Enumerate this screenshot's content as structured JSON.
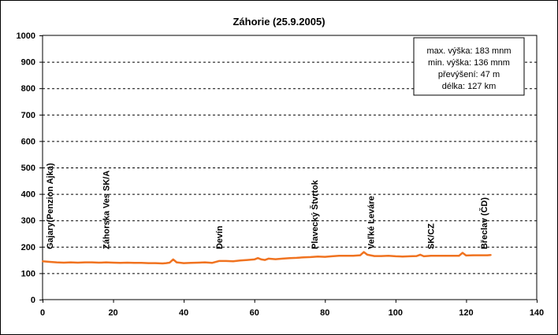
{
  "chart_data": {
    "type": "line",
    "title": "Záhorie (25.9.2005)",
    "xlabel": "",
    "ylabel": "",
    "xlim": [
      0,
      140
    ],
    "ylim": [
      0,
      1000
    ],
    "xticks": [
      0,
      20,
      40,
      60,
      80,
      100,
      120,
      140
    ],
    "yticks": [
      0,
      100,
      200,
      300,
      400,
      500,
      600,
      700,
      800,
      900,
      1000
    ],
    "grid": "horizontal-dashed",
    "colors": {
      "series": "#f07320",
      "grid": "#000000",
      "plot_bg": "#ffffff"
    },
    "series": [
      {
        "x": [
          0,
          2,
          4,
          6,
          8,
          10,
          12,
          14,
          16,
          18,
          20,
          22,
          24,
          26,
          28,
          30,
          32,
          34,
          35,
          36,
          37,
          38,
          40,
          42,
          44,
          46,
          48,
          50,
          52,
          54,
          56,
          58,
          60,
          61,
          62,
          63,
          64,
          66,
          68,
          70,
          72,
          74,
          76,
          78,
          80,
          82,
          84,
          86,
          88,
          90,
          91,
          92,
          94,
          96,
          98,
          100,
          102,
          104,
          106,
          107,
          108,
          110,
          112,
          114,
          116,
          118,
          119,
          120,
          122,
          124,
          126,
          127
        ],
        "y": [
          145,
          143,
          141,
          140,
          141,
          140,
          141,
          141,
          140,
          141,
          140,
          139,
          140,
          139,
          139,
          138,
          138,
          137,
          138,
          140,
          152,
          141,
          138,
          139,
          140,
          141,
          139,
          146,
          146,
          145,
          148,
          150,
          152,
          157,
          152,
          150,
          155,
          153,
          155,
          157,
          158,
          160,
          161,
          163,
          162,
          164,
          166,
          166,
          166,
          168,
          180,
          170,
          165,
          165,
          166,
          164,
          163,
          164,
          165,
          170,
          164,
          166,
          166,
          166,
          166,
          166,
          177,
          167,
          168,
          168,
          168,
          169
        ]
      }
    ],
    "places": [
      {
        "label": "Gajary(Penzion Ajka)",
        "x": 2
      },
      {
        "label": "Záhorska Ves SK/A",
        "x": 18
      },
      {
        "label": "Devín",
        "x": 50
      },
      {
        "label": "Plavecký Štvrtok",
        "x": 77
      },
      {
        "label": "Veľké Leváre",
        "x": 93
      },
      {
        "label": "SK/CZ",
        "x": 110
      },
      {
        "label": "Břeclav (ČD)",
        "x": 125
      }
    ],
    "info_box": [
      "max. výška: 183 mnm",
      "min. výška:  136 mnm",
      "převýšení: 47 m",
      "délka: 127 km"
    ]
  }
}
